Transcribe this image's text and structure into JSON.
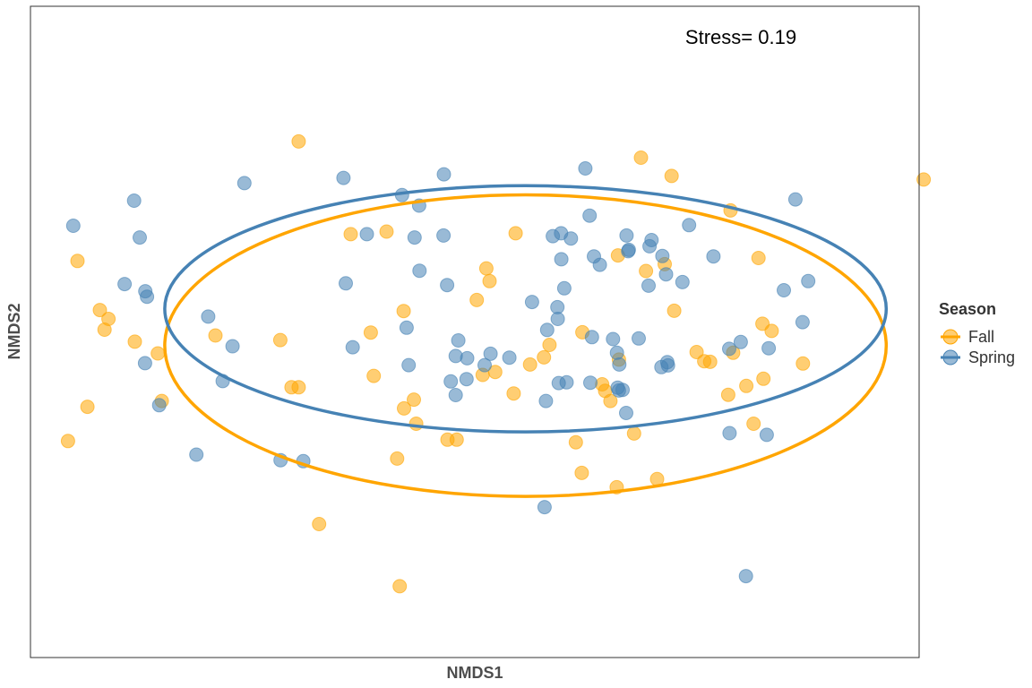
{
  "chart_data": {
    "type": "scatter",
    "xlabel": "NMDS1",
    "ylabel": "NMDS2",
    "annotation": "Stress= 0.19",
    "xlim": [
      -1.35,
      1.35
    ],
    "ylim": [
      -1.0,
      1.0
    ],
    "grid": false,
    "ticks": false,
    "legend": {
      "title": "Season",
      "position": "right",
      "entries": [
        "Fall",
        "Spring"
      ]
    },
    "series": [
      {
        "name": "Fall",
        "color": "#FFA500",
        "ellipse": {
          "cx": 0.154,
          "cy": -0.042,
          "rx": 1.096,
          "ry": 0.463
        },
        "points": [
          [
            -0.535,
            0.585
          ],
          [
            0.505,
            0.535
          ],
          [
            0.598,
            0.479
          ],
          [
            1.364,
            0.468
          ],
          [
            0.777,
            0.373
          ],
          [
            -0.377,
            0.3
          ],
          [
            -0.268,
            0.308
          ],
          [
            0.124,
            0.303
          ],
          [
            0.862,
            0.227
          ],
          [
            0.435,
            0.235
          ],
          [
            -1.207,
            0.218
          ],
          [
            0.577,
            0.208
          ],
          [
            0.035,
            0.195
          ],
          [
            0.52,
            0.187
          ],
          [
            0.006,
            0.098
          ],
          [
            0.606,
            0.065
          ],
          [
            0.045,
            0.156
          ],
          [
            -0.216,
            0.064
          ],
          [
            -1.139,
            0.067
          ],
          [
            -1.113,
            0.04
          ],
          [
            -1.125,
            0.007
          ],
          [
            -0.316,
            -0.002
          ],
          [
            -0.788,
            -0.011
          ],
          [
            -0.591,
            -0.025
          ],
          [
            0.902,
            0.003
          ],
          [
            0.874,
            0.025
          ],
          [
            0.327,
            -0.001
          ],
          [
            -1.033,
            -0.03
          ],
          [
            0.227,
            -0.04
          ],
          [
            -0.963,
            -0.066
          ],
          [
            0.674,
            -0.062
          ],
          [
            0.785,
            -0.064
          ],
          [
            0.697,
            -0.09
          ],
          [
            0.21,
            -0.078
          ],
          [
            0.438,
            -0.085
          ],
          [
            0.168,
            -0.1
          ],
          [
            -0.307,
            -0.135
          ],
          [
            0.715,
            -0.092
          ],
          [
            0.997,
            -0.097
          ],
          [
            0.877,
            -0.144
          ],
          [
            0.062,
            -0.123
          ],
          [
            0.024,
            -0.132
          ],
          [
            0.387,
            -0.161
          ],
          [
            -0.557,
            -0.17
          ],
          [
            -0.535,
            -0.17
          ],
          [
            0.825,
            -0.166
          ],
          [
            0.77,
            -0.193
          ],
          [
            0.118,
            -0.189
          ],
          [
            -0.951,
            -0.212
          ],
          [
            -0.185,
            -0.208
          ],
          [
            0.412,
            -0.212
          ],
          [
            -0.215,
            -0.235
          ],
          [
            0.396,
            -0.181
          ],
          [
            -1.177,
            -0.23
          ],
          [
            -0.178,
            -0.282
          ],
          [
            0.484,
            -0.312
          ],
          [
            0.847,
            -0.282
          ],
          [
            -0.083,
            -0.331
          ],
          [
            -0.055,
            -0.331
          ],
          [
            0.307,
            -0.339
          ],
          [
            -1.236,
            -0.335
          ],
          [
            -0.236,
            -0.389
          ],
          [
            0.325,
            -0.433
          ],
          [
            0.431,
            -0.477
          ],
          [
            0.554,
            -0.452
          ],
          [
            -0.473,
            -0.59
          ],
          [
            -0.228,
            -0.781
          ]
        ]
      },
      {
        "name": "Spring",
        "color": "#4682B4",
        "ellipse": {
          "cx": 0.154,
          "cy": 0.071,
          "rx": 1.096,
          "ry": 0.378
        },
        "points": [
          [
            0.336,
            0.502
          ],
          [
            -0.094,
            0.484
          ],
          [
            -0.399,
            0.473
          ],
          [
            -0.7,
            0.457
          ],
          [
            -1.035,
            0.403
          ],
          [
            -0.221,
            0.42
          ],
          [
            0.974,
            0.407
          ],
          [
            0.349,
            0.357
          ],
          [
            -0.169,
            0.388
          ],
          [
            0.651,
            0.328
          ],
          [
            -1.22,
            0.326
          ],
          [
            -1.018,
            0.29
          ],
          [
            -0.328,
            0.3
          ],
          [
            -0.183,
            0.29
          ],
          [
            -0.095,
            0.296
          ],
          [
            0.262,
            0.303
          ],
          [
            0.461,
            0.296
          ],
          [
            0.292,
            0.287
          ],
          [
            0.537,
            0.282
          ],
          [
            0.237,
            0.294
          ],
          [
            0.531,
            0.263
          ],
          [
            0.468,
            0.252
          ],
          [
            0.57,
            0.233
          ],
          [
            0.725,
            0.232
          ],
          [
            0.263,
            0.223
          ],
          [
            0.362,
            0.232
          ],
          [
            0.466,
            0.248
          ],
          [
            0.38,
            0.206
          ],
          [
            1.013,
            0.156
          ],
          [
            -0.392,
            0.149
          ],
          [
            -1.064,
            0.147
          ],
          [
            0.581,
            0.177
          ],
          [
            0.631,
            0.153
          ],
          [
            0.528,
            0.142
          ],
          [
            0.939,
            0.128
          ],
          [
            0.272,
            0.134
          ],
          [
            -0.168,
            0.188
          ],
          [
            -0.084,
            0.144
          ],
          [
            -1.001,
            0.125
          ],
          [
            -0.996,
            0.108
          ],
          [
            0.251,
            0.076
          ],
          [
            0.174,
            0.092
          ],
          [
            -0.81,
            0.047
          ],
          [
            0.252,
            0.04
          ],
          [
            0.996,
            0.03
          ],
          [
            0.22,
            0.006
          ],
          [
            -0.207,
            0.013
          ],
          [
            0.356,
            -0.016
          ],
          [
            -0.05,
            -0.026
          ],
          [
            0.808,
            -0.031
          ],
          [
            -0.736,
            -0.044
          ],
          [
            0.498,
            -0.02
          ],
          [
            -0.371,
            -0.047
          ],
          [
            0.42,
            -0.022
          ],
          [
            0.893,
            -0.05
          ],
          [
            0.773,
            -0.052
          ],
          [
            0.432,
            -0.064
          ],
          [
            0.048,
            -0.067
          ],
          [
            -0.058,
            -0.074
          ],
          [
            0.105,
            -0.079
          ],
          [
            -0.023,
            -0.081
          ],
          [
            0.439,
            -0.1
          ],
          [
            0.585,
            -0.093
          ],
          [
            0.587,
            -0.103
          ],
          [
            0.567,
            -0.108
          ],
          [
            -0.201,
            -0.102
          ],
          [
            0.03,
            -0.102
          ],
          [
            -1.002,
            -0.096
          ],
          [
            -0.025,
            -0.145
          ],
          [
            0.279,
            -0.155
          ],
          [
            0.351,
            -0.156
          ],
          [
            0.255,
            -0.157
          ],
          [
            0.434,
            -0.171
          ],
          [
            0.438,
            -0.18
          ],
          [
            -0.766,
            -0.151
          ],
          [
            -0.073,
            -0.152
          ],
          [
            -0.959,
            -0.225
          ],
          [
            -0.058,
            -0.194
          ],
          [
            0.449,
            -0.178
          ],
          [
            0.216,
            -0.212
          ],
          [
            0.46,
            -0.249
          ],
          [
            0.887,
            -0.316
          ],
          [
            0.774,
            -0.311
          ],
          [
            -0.846,
            -0.377
          ],
          [
            -0.59,
            -0.394
          ],
          [
            -0.521,
            -0.397
          ],
          [
            0.212,
            -0.538
          ],
          [
            0.824,
            -0.75
          ]
        ]
      }
    ]
  }
}
